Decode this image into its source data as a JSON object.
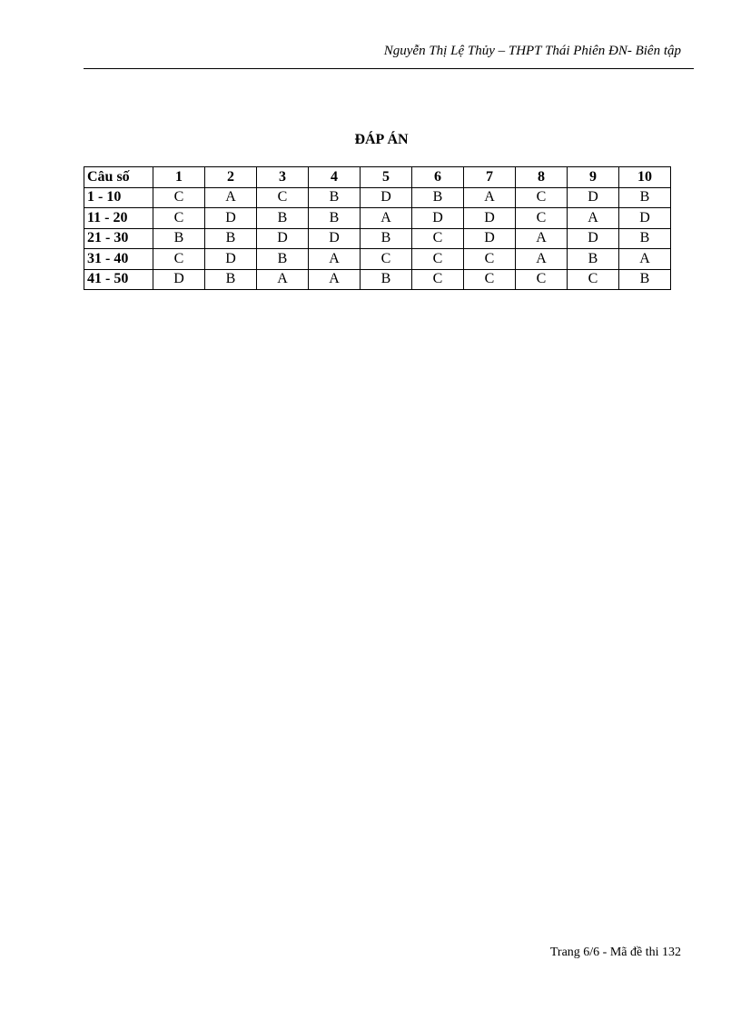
{
  "header": {
    "text": "Nguyễn Thị Lệ Thủy – THPT Thái Phiên ĐN- Biên tập"
  },
  "title": "ĐÁP ÁN",
  "answer_table": {
    "columns": [
      "Câu số",
      "1",
      "2",
      "3",
      "4",
      "5",
      "6",
      "7",
      "8",
      "9",
      "10"
    ],
    "rows": [
      {
        "range": "1 - 10",
        "answers": [
          "C",
          "A",
          "C",
          "B",
          "D",
          "B",
          "A",
          "C",
          "D",
          "B"
        ]
      },
      {
        "range": "11 - 20",
        "answers": [
          "C",
          "D",
          "B",
          "B",
          "A",
          "D",
          "D",
          "C",
          "A",
          "D"
        ]
      },
      {
        "range": "21 - 30",
        "answers": [
          "B",
          "B",
          "D",
          "D",
          "B",
          "C",
          "D",
          "A",
          "D",
          "B"
        ]
      },
      {
        "range": "31 - 40",
        "answers": [
          "C",
          "D",
          "B",
          "A",
          "C",
          "C",
          "C",
          "A",
          "B",
          "A"
        ]
      },
      {
        "range": "41 - 50",
        "answers": [
          "D",
          "B",
          "A",
          "A",
          "B",
          "C",
          "C",
          "C",
          "C",
          "B"
        ]
      }
    ]
  },
  "footer": {
    "text": "Trang 6/6 - Mã đề thi 132"
  }
}
